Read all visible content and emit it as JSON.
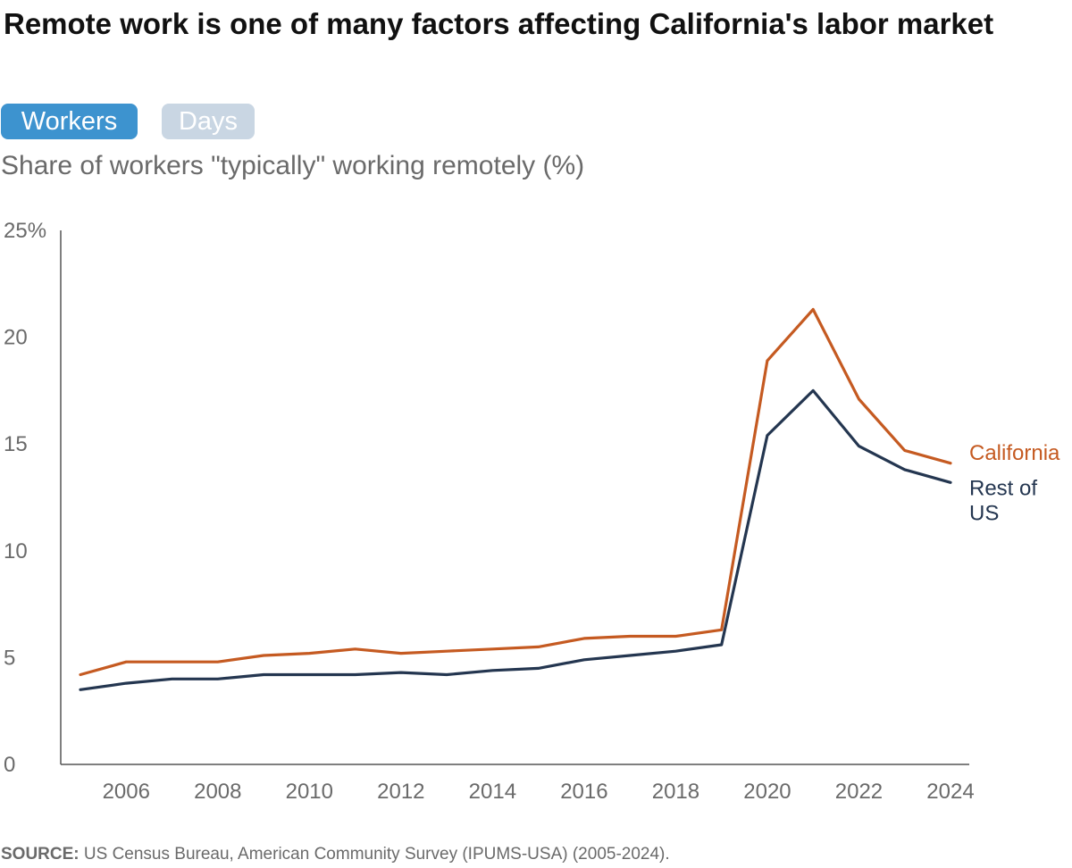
{
  "title": "Remote work is one of many factors affecting California's labor market",
  "toggles": [
    {
      "label": "Workers",
      "active": true
    },
    {
      "label": "Days",
      "active": false
    }
  ],
  "subtitle": "Share of workers \"typically\" working remotely (%)",
  "source_label": "SOURCE:",
  "source_text": "US Census Bureau, American Community Survey (IPUMS-USA) (2005-2024).",
  "chart_data": {
    "type": "line",
    "x": [
      2005,
      2006,
      2007,
      2008,
      2009,
      2010,
      2011,
      2012,
      2013,
      2014,
      2015,
      2016,
      2017,
      2018,
      2019,
      2020,
      2021,
      2022,
      2023,
      2024
    ],
    "xticks": [
      "2006",
      "2008",
      "2010",
      "2012",
      "2014",
      "2016",
      "2018",
      "2020",
      "2022",
      "2024"
    ],
    "yticks": [
      "0",
      "5",
      "10",
      "15",
      "20",
      "25%"
    ],
    "ylim": [
      0,
      25
    ],
    "grid": false,
    "legend": "direct labels at line ends",
    "series": [
      {
        "name": "California",
        "color": "#c55a21",
        "values": [
          4.2,
          4.8,
          4.8,
          4.8,
          5.1,
          5.2,
          5.4,
          5.2,
          5.3,
          5.4,
          5.5,
          5.9,
          6.0,
          6.0,
          6.3,
          18.9,
          21.3,
          17.1,
          14.7,
          14.1
        ]
      },
      {
        "name": "Rest of US",
        "color": "#243650",
        "values": [
          3.5,
          3.8,
          4.0,
          4.0,
          4.2,
          4.2,
          4.2,
          4.3,
          4.2,
          4.4,
          4.5,
          4.9,
          5.1,
          5.3,
          5.6,
          15.4,
          17.5,
          14.9,
          13.8,
          13.2
        ]
      }
    ]
  }
}
